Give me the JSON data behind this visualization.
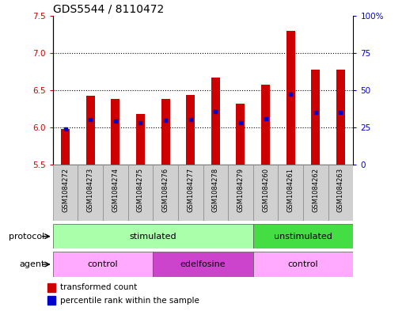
{
  "title": "GDS5544 / 8110472",
  "samples": [
    "GSM1084272",
    "GSM1084273",
    "GSM1084274",
    "GSM1084275",
    "GSM1084276",
    "GSM1084277",
    "GSM1084278",
    "GSM1084279",
    "GSM1084260",
    "GSM1084261",
    "GSM1084262",
    "GSM1084263"
  ],
  "bar_bottoms": [
    5.5,
    5.5,
    5.5,
    5.5,
    5.5,
    5.5,
    5.5,
    5.5,
    5.5,
    5.5,
    5.5,
    5.5
  ],
  "bar_tops": [
    5.98,
    6.43,
    6.38,
    6.18,
    6.38,
    6.44,
    6.67,
    6.32,
    6.57,
    7.3,
    6.78,
    6.78
  ],
  "percentile_values": [
    5.98,
    6.11,
    6.09,
    6.07,
    6.1,
    6.11,
    6.21,
    6.07,
    6.12,
    6.45,
    6.2,
    6.2
  ],
  "ylim_left": [
    5.5,
    7.5
  ],
  "ylim_right": [
    0,
    100
  ],
  "yticks_left": [
    5.5,
    6.0,
    6.5,
    7.0,
    7.5
  ],
  "yticks_right": [
    0,
    25,
    50,
    75,
    100
  ],
  "ytick_labels_right": [
    "0",
    "25",
    "50",
    "75",
    "100%"
  ],
  "bar_color": "#cc0000",
  "percentile_color": "#0000cc",
  "protocol_stimulated_color": "#aaffaa",
  "protocol_unstimulated_color": "#44dd44",
  "agent_control_color": "#ffaaff",
  "agent_edelfosine_color": "#cc44cc",
  "bg_color": "#ffffff",
  "title_fontsize": 10,
  "axis_color_left": "#cc0000",
  "axis_color_right": "#0000cc",
  "sample_bg_color": "#d0d0d0",
  "bar_width": 0.35
}
